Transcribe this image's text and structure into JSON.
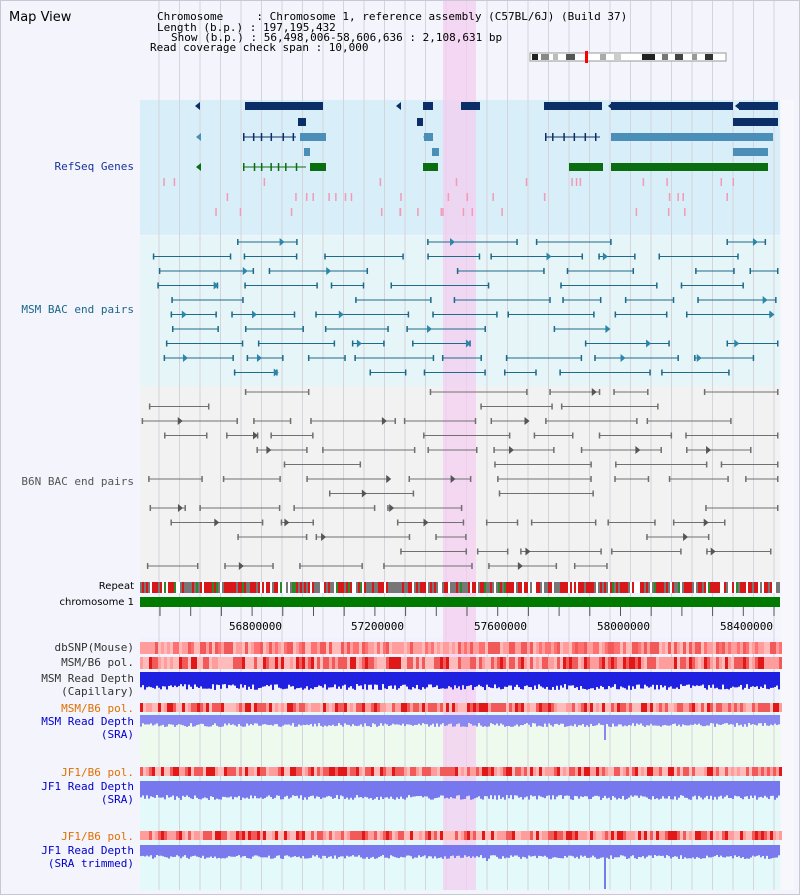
{
  "title": "Map View",
  "info": {
    "chromosome": "Chromosome     : Chromosome 1, reference assembly (C57BL/6J) (Build 37)",
    "length": "Length (b.p.) : 197,195,432",
    "show": "Show (b.p.) : 56,498,006-58,606,636 : 2,108,631 bp",
    "coverage": "Read coverage check span : 10,000"
  },
  "tracks": {
    "refseq": "RefSeq Genes",
    "msm_bac": "MSM BAC end pairs",
    "b6n_bac": "B6N BAC end pairs",
    "repeat": "Repeat",
    "chromosome": "chromosome 1",
    "dbsnp": "dbSNP(Mouse)",
    "msm_pol": "MSM/B6 pol.",
    "msm_depth_cap_1": "MSM Read Depth",
    "msm_depth_cap_2": "(Capillary)",
    "msm_pol_sra": "MSM/B6 pol.",
    "msm_depth_sra_1": "MSM Read Depth",
    "msm_depth_sra_2": "(SRA)",
    "jf1_pol_1": "JF1/B6 pol.",
    "jf1_depth_1": "JF1 Read Depth",
    "jf1_depth_sra": "(SRA)",
    "jf1_pol_2": "JF1/B6 pol.",
    "jf1_depth_2": "JF1 Read Depth",
    "jf1_depth_trim": "(SRA trimmed)"
  },
  "axis": {
    "ticks": [
      "56800000",
      "57200000",
      "57600000",
      "58000000",
      "58400000"
    ]
  },
  "colors": {
    "refseq_label": "#1a3399",
    "msm_label": "#1a6688",
    "b6n_label": "#555555",
    "orange_label": "#e07000",
    "blue_label": "#0000cc",
    "highlight": "#f6d8f4"
  }
}
